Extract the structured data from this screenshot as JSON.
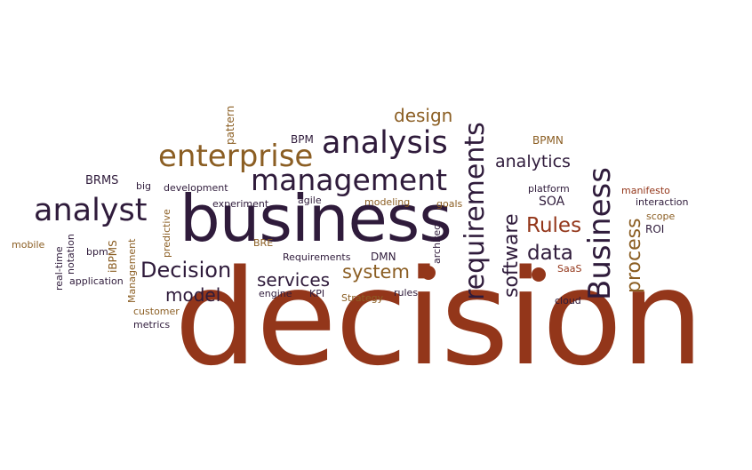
{
  "palette": {
    "rust": "#93361A",
    "plum": "#2F1B3B",
    "gold": "#8B5E23",
    "background": "#FFFFFF"
  },
  "words": {
    "decision": "decision",
    "business": "business",
    "management": "management",
    "enterprise": "enterprise",
    "analysis": "analysis",
    "analyst": "analyst",
    "requirements": "requirements",
    "business_cap": "Business",
    "design": "design",
    "analytics": "analytics",
    "software": "software",
    "rules_cap": "Rules",
    "data": "data",
    "process": "process",
    "decision_cap": "Decision",
    "system": "system",
    "services": "services",
    "model": "model",
    "bpmn": "BPMN",
    "bpm": "BPM",
    "pattern": "pattern",
    "brms": "BRMS",
    "big": "big",
    "development": "development",
    "experiment": "experiment",
    "agile": "agile",
    "modeling": "modeling",
    "goals": "goals",
    "platform": "platform",
    "soa": "SOA",
    "manifesto": "manifesto",
    "interaction": "interaction",
    "scope": "scope",
    "roi": "ROI",
    "mobile": "mobile",
    "real_time": "real-time",
    "notation": "notation",
    "bpm_lower": "bpm",
    "ibpms": "iBPMS",
    "management_cap": "Management",
    "predictive": "predictive",
    "application": "application",
    "bre": "BRE",
    "requirements_cap": "Requirements",
    "dmn": "DMN",
    "architect": "architect",
    "saas": "SaaS",
    "engine": "engine",
    "kpi": "KPI",
    "strategy": "Strategy",
    "rules": "rules",
    "cloud": "cloud",
    "customer": "customer",
    "metrics": "metrics"
  }
}
